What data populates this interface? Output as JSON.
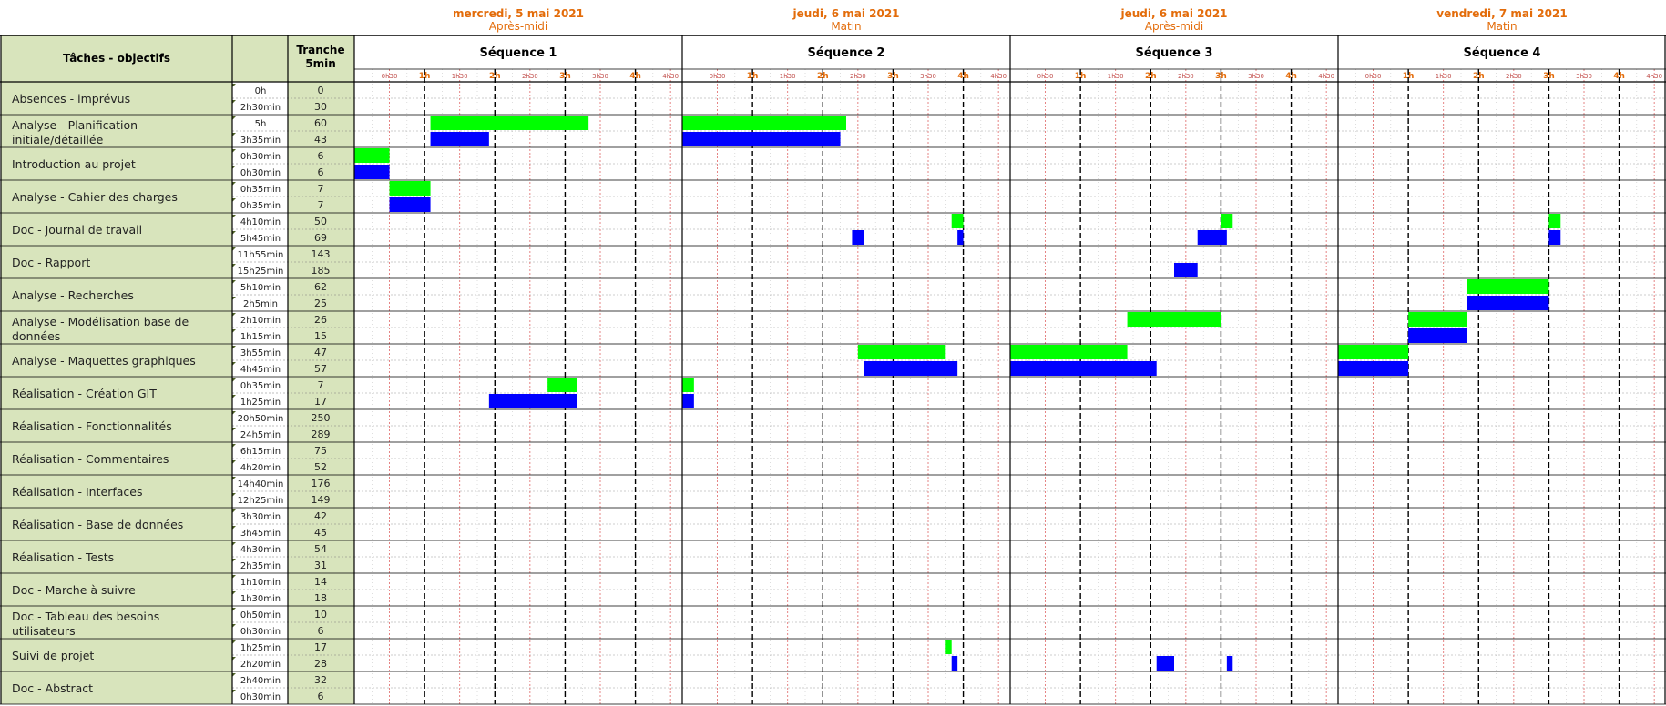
{
  "chart_data": {
    "type": "gantt",
    "days": [
      {
        "date": "mercredi, 5 mai 2021",
        "period": "Après-midi"
      },
      {
        "date": "jeudi, 6 mai 2021",
        "period": "Matin"
      },
      {
        "date": "jeudi, 6 mai 2021",
        "period": "Après-midi"
      },
      {
        "date": "vendredi, 7 mai 2021",
        "period": "Matin"
      }
    ],
    "sequences": [
      "Séquence 1",
      "Séquence 2",
      "Séquence 3",
      "Séquence 4"
    ],
    "header": {
      "tasks": "Tâches - objectifs",
      "slot_line1": "Tranche",
      "slot_line2": "5min"
    },
    "time_ticks": [
      "0h30",
      "1h",
      "1h30",
      "2h",
      "2h30",
      "3h",
      "3h30",
      "4h",
      "4h30"
    ],
    "bar_colors": {
      "planned": "#00ff00",
      "actual": "#0000ff"
    },
    "tasks": [
      {
        "name": "Absences - imprévus",
        "planned": "0h",
        "planned_slots": 0,
        "actual": "2h30min",
        "actual_slots": 30,
        "planned_bars": [],
        "actual_bars": []
      },
      {
        "name": "Analyse - Planification initiale/détaillée",
        "planned": "5h",
        "planned_slots": 60,
        "actual": "3h35min",
        "actual_slots": 43,
        "planned_bars": [
          [
            1,
            65,
            200
          ],
          [
            2,
            0,
            140
          ]
        ],
        "actual_bars": [
          [
            1,
            65,
            115
          ],
          [
            2,
            0,
            135
          ]
        ]
      },
      {
        "name": "Introduction au projet",
        "planned": "0h30min",
        "planned_slots": 6,
        "actual": "0h30min",
        "actual_slots": 6,
        "planned_bars": [
          [
            1,
            0,
            30
          ]
        ],
        "actual_bars": [
          [
            1,
            0,
            30
          ]
        ]
      },
      {
        "name": "Analyse - Cahier des charges",
        "planned": "0h35min",
        "planned_slots": 7,
        "actual": "0h35min",
        "actual_slots": 7,
        "planned_bars": [
          [
            1,
            30,
            65
          ]
        ],
        "actual_bars": [
          [
            1,
            30,
            65
          ]
        ]
      },
      {
        "name": "Doc - Journal de travail",
        "planned": "4h10min",
        "planned_slots": 50,
        "actual": "5h45min",
        "actual_slots": 69,
        "planned_bars": [
          [
            2,
            230,
            240
          ],
          [
            3,
            180,
            190
          ],
          [
            4,
            180,
            190
          ]
        ],
        "actual_bars": [
          [
            2,
            145,
            155
          ],
          [
            2,
            235,
            240
          ],
          [
            3,
            160,
            185
          ],
          [
            4,
            180,
            190
          ]
        ]
      },
      {
        "name": "Doc - Rapport",
        "planned": "11h55min",
        "planned_slots": 143,
        "actual": "15h25min",
        "actual_slots": 185,
        "planned_bars": [],
        "actual_bars": [
          [
            3,
            140,
            160
          ]
        ]
      },
      {
        "name": "Analyse - Recherches",
        "planned": "5h10min",
        "planned_slots": 62,
        "actual": "2h5min",
        "actual_slots": 25,
        "planned_bars": [
          [
            4,
            110,
            180
          ]
        ],
        "actual_bars": [
          [
            4,
            110,
            180
          ]
        ]
      },
      {
        "name": "Analyse - Modélisation base de données",
        "planned": "2h10min",
        "planned_slots": 26,
        "actual": "1h15min",
        "actual_slots": 15,
        "planned_bars": [
          [
            3,
            100,
            180
          ],
          [
            4,
            60,
            110
          ]
        ],
        "actual_bars": [
          [
            4,
            60,
            110
          ]
        ]
      },
      {
        "name": "Analyse - Maquettes graphiques",
        "planned": "3h55min",
        "planned_slots": 47,
        "actual": "4h45min",
        "actual_slots": 57,
        "planned_bars": [
          [
            2,
            150,
            225
          ],
          [
            3,
            0,
            100
          ],
          [
            4,
            0,
            60
          ]
        ],
        "actual_bars": [
          [
            2,
            155,
            235
          ],
          [
            3,
            0,
            125
          ],
          [
            4,
            0,
            60
          ]
        ]
      },
      {
        "name": "Réalisation - Création GIT",
        "planned": "0h35min",
        "planned_slots": 7,
        "actual": "1h25min",
        "actual_slots": 17,
        "planned_bars": [
          [
            1,
            165,
            190
          ],
          [
            2,
            0,
            10
          ]
        ],
        "actual_bars": [
          [
            1,
            115,
            190
          ],
          [
            2,
            0,
            10
          ]
        ]
      },
      {
        "name": "Réalisation - Fonctionnalités",
        "planned": "20h50min",
        "planned_slots": 250,
        "actual": "24h5min",
        "actual_slots": 289,
        "planned_bars": [],
        "actual_bars": []
      },
      {
        "name": "Réalisation - Commentaires",
        "planned": "6h15min",
        "planned_slots": 75,
        "actual": "4h20min",
        "actual_slots": 52,
        "planned_bars": [],
        "actual_bars": []
      },
      {
        "name": "Réalisation - Interfaces",
        "planned": "14h40min",
        "planned_slots": 176,
        "actual": "12h25min",
        "actual_slots": 149,
        "planned_bars": [],
        "actual_bars": []
      },
      {
        "name": "Réalisation - Base de données",
        "planned": "3h30min",
        "planned_slots": 42,
        "actual": "3h45min",
        "actual_slots": 45,
        "planned_bars": [],
        "actual_bars": []
      },
      {
        "name": "Réalisation - Tests",
        "planned": "4h30min",
        "planned_slots": 54,
        "actual": "2h35min",
        "actual_slots": 31,
        "planned_bars": [],
        "actual_bars": []
      },
      {
        "name": "Doc - Marche à suivre",
        "planned": "1h10min",
        "planned_slots": 14,
        "actual": "1h30min",
        "actual_slots": 18,
        "planned_bars": [],
        "actual_bars": []
      },
      {
        "name": "Doc - Tableau des besoins utilisateurs",
        "planned": "0h50min",
        "planned_slots": 10,
        "actual": "0h30min",
        "actual_slots": 6,
        "planned_bars": [],
        "actual_bars": []
      },
      {
        "name": "Suivi de projet",
        "planned": "1h25min",
        "planned_slots": 17,
        "actual": "2h20min",
        "actual_slots": 28,
        "planned_bars": [
          [
            2,
            225,
            230
          ]
        ],
        "actual_bars": [
          [
            2,
            230,
            235
          ],
          [
            3,
            125,
            140
          ],
          [
            3,
            185,
            190
          ]
        ]
      },
      {
        "name": "Doc - Abstract",
        "planned": "2h40min",
        "planned_slots": 32,
        "actual": "0h30min",
        "actual_slots": 6,
        "planned_bars": [],
        "actual_bars": []
      }
    ]
  }
}
